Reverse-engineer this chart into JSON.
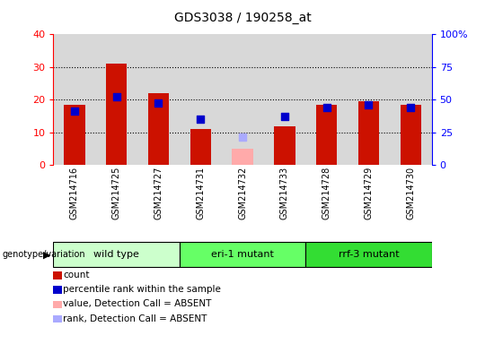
{
  "title": "GDS3038 / 190258_at",
  "samples": [
    "GSM214716",
    "GSM214725",
    "GSM214727",
    "GSM214731",
    "GSM214732",
    "GSM214733",
    "GSM214728",
    "GSM214729",
    "GSM214730"
  ],
  "counts": [
    18.5,
    31.0,
    22.0,
    11.0,
    null,
    12.0,
    18.5,
    19.5,
    18.5
  ],
  "ranks_left": [
    16.5,
    21.0,
    19.0,
    14.0,
    null,
    15.0,
    17.5,
    18.5,
    17.5
  ],
  "absent_value": [
    null,
    null,
    null,
    null,
    5.0,
    null,
    null,
    null,
    null
  ],
  "absent_rank": [
    null,
    null,
    null,
    null,
    8.5,
    null,
    null,
    null,
    null
  ],
  "groups": [
    {
      "label": "wild type",
      "start": 0,
      "end": 3,
      "color": "#ccffcc"
    },
    {
      "label": "eri-1 mutant",
      "start": 3,
      "end": 6,
      "color": "#66ff66"
    },
    {
      "label": "rrf-3 mutant",
      "start": 6,
      "end": 9,
      "color": "#33dd33"
    }
  ],
  "ylim_left": [
    0,
    40
  ],
  "ylim_right": [
    0,
    100
  ],
  "yticks_left": [
    0,
    10,
    20,
    30,
    40
  ],
  "ytick_labels_right": [
    "0",
    "25",
    "50",
    "75",
    "100"
  ],
  "bar_color": "#cc1100",
  "rank_color": "#0000cc",
  "absent_bar_color": "#ffaaaa",
  "absent_rank_color": "#aaaaff",
  "cell_bg": "#d8d8d8",
  "bar_width": 0.5,
  "rank_marker_size": 30
}
